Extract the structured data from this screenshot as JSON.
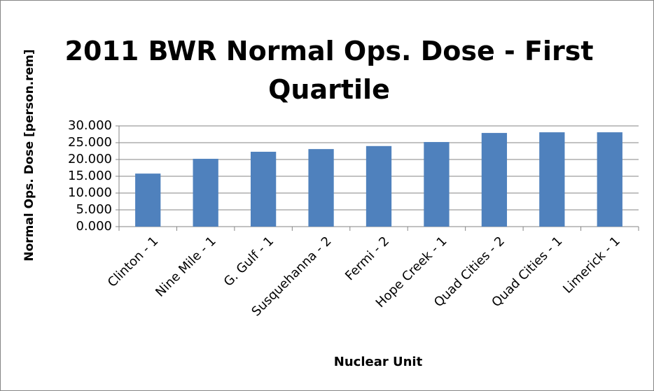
{
  "chart_data": {
    "type": "bar",
    "title": "2011 BWR Normal Ops. Dose - First Quartile",
    "x_label": "Nuclear Unit",
    "y_label": "Normal Ops. Dose [person.rem]",
    "categories": [
      "Clinton - 1",
      "Nine Mile - 1",
      "G. Gulf - 1",
      "Susquehanna - 2",
      "Fermi - 2",
      "Hope Creek - 1",
      "Quad Cities - 2",
      "Quad Cities - 1",
      "Limerick - 1"
    ],
    "values": [
      15.8,
      20.2,
      22.3,
      23.1,
      24.0,
      25.2,
      27.9,
      28.1,
      28.1
    ],
    "color": "#4f81bd",
    "ylim": [
      0,
      30
    ],
    "yticks": [
      {
        "value": 0,
        "label": "0.000"
      },
      {
        "value": 5,
        "label": "5.000"
      },
      {
        "value": 10,
        "label": "10.000"
      },
      {
        "value": 15,
        "label": "15.000"
      },
      {
        "value": 20,
        "label": "20.000"
      },
      {
        "value": 25,
        "label": "25.000"
      },
      {
        "value": 30,
        "label": "30.000"
      }
    ],
    "grid": true
  }
}
